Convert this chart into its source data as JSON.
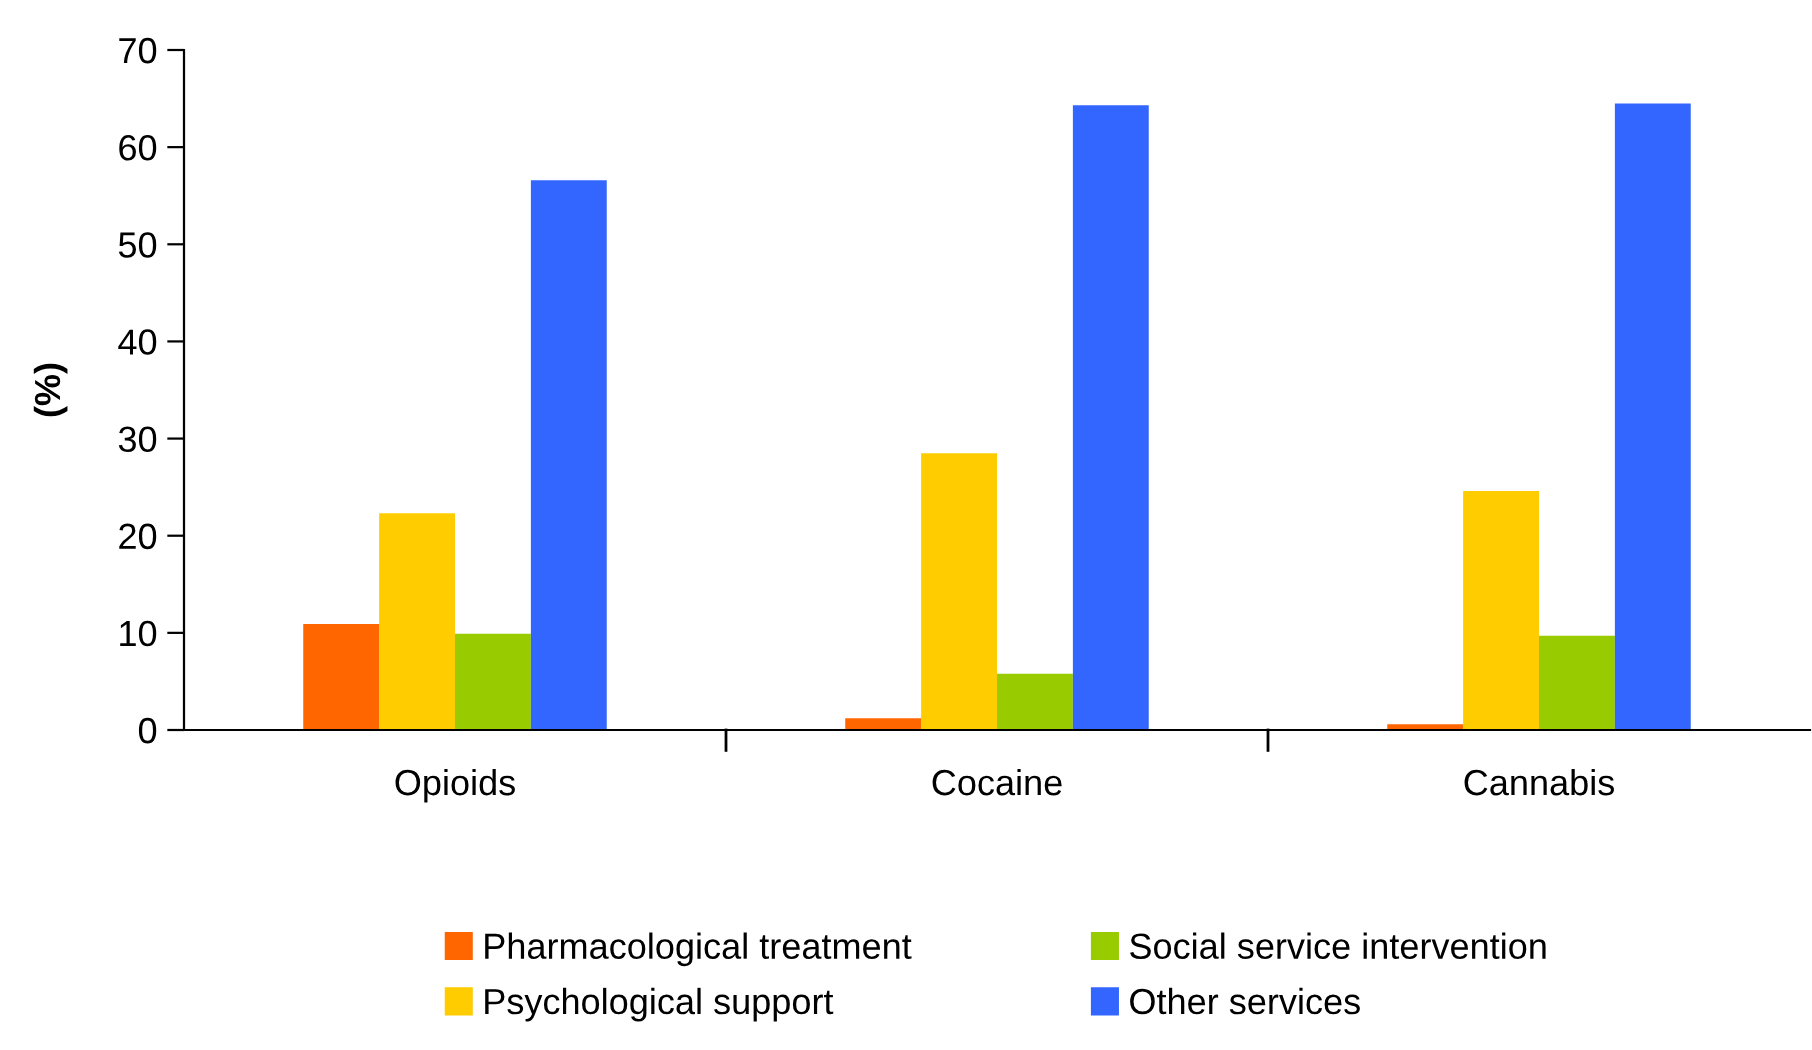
{
  "chart_data": {
    "type": "bar",
    "ylabel": "(%)",
    "categories": [
      "Opioids",
      "Cocaine",
      "Cannabis"
    ],
    "series": [
      {
        "name": "Pharmacological treatment",
        "color": "#ff6600",
        "values": [
          10.9,
          1.2,
          0.6
        ]
      },
      {
        "name": "Psychological support",
        "color": "#ffcc00",
        "values": [
          22.3,
          28.5,
          24.6
        ]
      },
      {
        "name": "Social service intervention",
        "color": "#99cc00",
        "values": [
          9.9,
          5.8,
          9.7
        ]
      },
      {
        "name": "Other services",
        "color": "#3366ff",
        "values": [
          56.6,
          64.3,
          64.5
        ]
      }
    ],
    "ylim": [
      0,
      70
    ],
    "yticks": [
      0,
      10,
      20,
      30,
      40,
      50,
      60,
      70
    ],
    "grid": false,
    "legend": "bottom"
  }
}
